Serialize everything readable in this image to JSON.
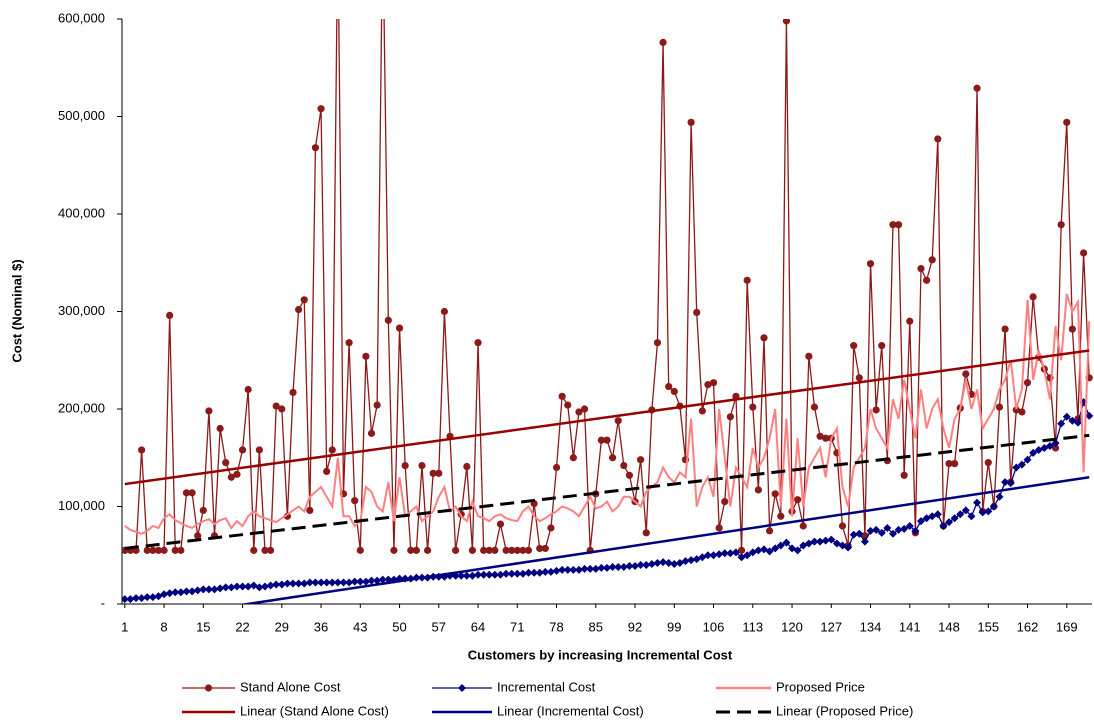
{
  "chart_data": {
    "type": "line",
    "x_label": "Customers by increasing Incremental Cost",
    "y_label": "Cost (Nominal $)",
    "categories": [
      1,
      null,
      null,
      null,
      null,
      null,
      null,
      8,
      null,
      null,
      null,
      null,
      null,
      null,
      15,
      null,
      null,
      null,
      null,
      null,
      null,
      22,
      null,
      null,
      null,
      null,
      null,
      null,
      29,
      null,
      null,
      null,
      null,
      null,
      null,
      36,
      null,
      null,
      null,
      null,
      null,
      null,
      43,
      null,
      null,
      null,
      null,
      null,
      null,
      50,
      null,
      null,
      null,
      null,
      null,
      null,
      57,
      null,
      null,
      null,
      null,
      null,
      null,
      64,
      null,
      null,
      null,
      null,
      null,
      null,
      71,
      null,
      null,
      null,
      null,
      null,
      null,
      78,
      null,
      null,
      null,
      null,
      null,
      null,
      85,
      null,
      null,
      null,
      null,
      null,
      null,
      92,
      null,
      null,
      null,
      null,
      null,
      null,
      99,
      null,
      null,
      null,
      null,
      null,
      null,
      106,
      null,
      null,
      null,
      null,
      null,
      null,
      113,
      null,
      null,
      null,
      null,
      null,
      null,
      120,
      null,
      null,
      null,
      null,
      null,
      null,
      127,
      null,
      null,
      null,
      null,
      null,
      null,
      134,
      null,
      null,
      null,
      null,
      null,
      null,
      141,
      null,
      null,
      null,
      null,
      null,
      null,
      148,
      null,
      null,
      null,
      null,
      null,
      null,
      155,
      null,
      null,
      null,
      null,
      null,
      null,
      162,
      null,
      null,
      null,
      null,
      null,
      null,
      169,
      null,
      null,
      null,
      null
    ],
    "ylim": [
      0,
      600000
    ],
    "yticks": [
      {
        "value": 0,
        "label": "-"
      },
      {
        "value": 100000,
        "label": "100,000"
      },
      {
        "value": 200000,
        "label": "200,000"
      },
      {
        "value": 300000,
        "label": "300,000"
      },
      {
        "value": 400000,
        "label": "400,000"
      },
      {
        "value": 500000,
        "label": "500,000"
      },
      {
        "value": 600000,
        "label": "600,000"
      }
    ],
    "grid": false,
    "legend": "bottom",
    "series": [
      {
        "name": "Stand Alone Cost",
        "color": "#8b1a1a",
        "marker": "circle",
        "values": [
          55000,
          55000,
          55000,
          158000,
          55000,
          55000,
          55000,
          55000,
          296000,
          55000,
          55000,
          114000,
          114000,
          70000,
          96000,
          198000,
          70000,
          180000,
          145000,
          130000,
          133000,
          158000,
          220000,
          55000,
          158000,
          55000,
          55000,
          203000,
          200000,
          90000,
          217000,
          302000,
          312000,
          96000,
          468000,
          508000,
          136000,
          158000,
          700000,
          113000,
          268000,
          106000,
          55000,
          254000,
          175000,
          204000,
          700000,
          291000,
          55000,
          283000,
          142000,
          55000,
          55000,
          142000,
          55000,
          134000,
          134000,
          300000,
          172000,
          55000,
          92000,
          141000,
          55000,
          268000,
          55000,
          55000,
          55000,
          82000,
          55000,
          55000,
          55000,
          55000,
          55000,
          103000,
          57000,
          57000,
          78000,
          140000,
          213000,
          204000,
          150000,
          197000,
          200000,
          55000,
          113000,
          168000,
          168000,
          150000,
          188000,
          142000,
          132000,
          105000,
          148000,
          73000,
          199000,
          268000,
          576000,
          223000,
          218000,
          203000,
          148000,
          494000,
          299000,
          198000,
          225000,
          227000,
          78000,
          105000,
          192000,
          213000,
          55000,
          332000,
          202000,
          117000,
          273000,
          75000,
          113000,
          90000,
          598000,
          95000,
          107000,
          80000,
          254000,
          202000,
          172000,
          170000,
          170000,
          155000,
          80000,
          60000,
          265000,
          232000,
          70000,
          349000,
          199000,
          265000,
          147000,
          389000,
          389000,
          132000,
          290000,
          73000,
          344000,
          332000,
          353000,
          477000,
          80000,
          144000,
          144000,
          201000,
          236000,
          215000,
          529000,
          95000,
          145000,
          100000,
          202000,
          282000,
          125000,
          199000,
          197000,
          227000,
          315000,
          253000,
          241000,
          232000,
          160000,
          389000,
          494000,
          282000,
          190000,
          360000,
          232000
        ]
      },
      {
        "name": "Incremental Cost",
        "color": "#000080",
        "marker": "diamond",
        "values": [
          5000,
          5000,
          6000,
          6000,
          7000,
          7000,
          8000,
          10000,
          11000,
          12000,
          12000,
          13000,
          13000,
          14000,
          15000,
          15000,
          15000,
          16000,
          17000,
          17000,
          18000,
          18000,
          18000,
          19000,
          17000,
          18000,
          19000,
          20000,
          20000,
          21000,
          21000,
          21000,
          21000,
          22000,
          22000,
          22000,
          22000,
          22000,
          22000,
          22000,
          22000,
          23000,
          23000,
          23000,
          24000,
          24000,
          25000,
          25000,
          25000,
          26000,
          26000,
          26000,
          27000,
          27000,
          27000,
          28000,
          28000,
          28000,
          29000,
          29000,
          29000,
          29000,
          29000,
          30000,
          30000,
          30000,
          30000,
          30000,
          31000,
          31000,
          31000,
          31000,
          32000,
          32000,
          32000,
          33000,
          33000,
          34000,
          35000,
          35000,
          35000,
          35000,
          36000,
          36000,
          36000,
          37000,
          37000,
          38000,
          38000,
          38000,
          39000,
          39000,
          40000,
          40000,
          41000,
          42000,
          43000,
          42000,
          41000,
          42000,
          44000,
          45000,
          46000,
          48000,
          50000,
          50000,
          51000,
          52000,
          52000,
          53000,
          48000,
          50000,
          53000,
          55000,
          56000,
          54000,
          57000,
          60000,
          63000,
          57000,
          55000,
          60000,
          62000,
          64000,
          64000,
          65000,
          66000,
          62000,
          60000,
          58000,
          71000,
          72000,
          64000,
          75000,
          76000,
          73000,
          78000,
          72000,
          76000,
          77000,
          80000,
          75000,
          85000,
          88000,
          90000,
          92000,
          80000,
          84000,
          88000,
          92000,
          96000,
          90000,
          104000,
          94000,
          95000,
          100000,
          110000,
          125000,
          124000,
          140000,
          143000,
          148000,
          155000,
          158000,
          160000,
          162000,
          165000,
          185000,
          192000,
          188000,
          186000,
          207000,
          193000
        ]
      },
      {
        "name": "Proposed Price",
        "color": "#ff8080",
        "marker": null,
        "values": [
          80000,
          76000,
          74000,
          72000,
          75000,
          80000,
          78000,
          88000,
          92000,
          86000,
          83000,
          80000,
          78000,
          82000,
          85000,
          87000,
          82000,
          86000,
          88000,
          78000,
          85000,
          80000,
          90000,
          95000,
          90000,
          88000,
          86000,
          84000,
          88000,
          92000,
          96000,
          100000,
          95000,
          110000,
          115000,
          120000,
          110000,
          100000,
          150000,
          90000,
          90000,
          80000,
          85000,
          120000,
          115000,
          100000,
          95000,
          125000,
          85000,
          130000,
          90000,
          95000,
          100000,
          85000,
          90000,
          95000,
          110000,
          120000,
          95000,
          100000,
          90000,
          85000,
          105000,
          90000,
          88000,
          85000,
          90000,
          92000,
          88000,
          86000,
          85000,
          95000,
          100000,
          90000,
          85000,
          88000,
          92000,
          95000,
          100000,
          98000,
          95000,
          90000,
          100000,
          110000,
          98000,
          100000,
          105000,
          95000,
          100000,
          110000,
          110000,
          105000,
          100000,
          115000,
          120000,
          125000,
          140000,
          130000,
          125000,
          135000,
          130000,
          190000,
          100000,
          120000,
          130000,
          110000,
          200000,
          150000,
          100000,
          140000,
          130000,
          120000,
          160000,
          140000,
          150000,
          170000,
          200000,
          100000,
          190000,
          90000,
          170000,
          100000,
          140000,
          150000,
          160000,
          130000,
          170000,
          180000,
          120000,
          100000,
          140000,
          150000,
          160000,
          200000,
          180000,
          170000,
          160000,
          210000,
          190000,
          230000,
          200000,
          170000,
          220000,
          180000,
          200000,
          210000,
          180000,
          160000,
          190000,
          200000,
          230000,
          200000,
          220000,
          180000,
          190000,
          200000,
          220000,
          230000,
          250000,
          200000,
          220000,
          312000,
          230000,
          260000,
          240000,
          210000,
          285000,
          250000,
          318000,
          300000,
          310000,
          135000,
          290000
        ]
      }
    ],
    "trendlines": [
      {
        "name": "Linear (Stand Alone Cost)",
        "color": "#990000",
        "dash": false,
        "x": [
          1,
          173
        ],
        "values": [
          123000,
          260000
        ]
      },
      {
        "name": "Linear (Incremental Cost)",
        "color": "#000080",
        "dash": false,
        "x": [
          1,
          173
        ],
        "values": [
          -19000,
          130000
        ]
      },
      {
        "name": "Linear (Proposed Price)",
        "color": "#000000",
        "dash": true,
        "x": [
          1,
          173
        ],
        "values": [
          57000,
          173000
        ]
      }
    ]
  }
}
